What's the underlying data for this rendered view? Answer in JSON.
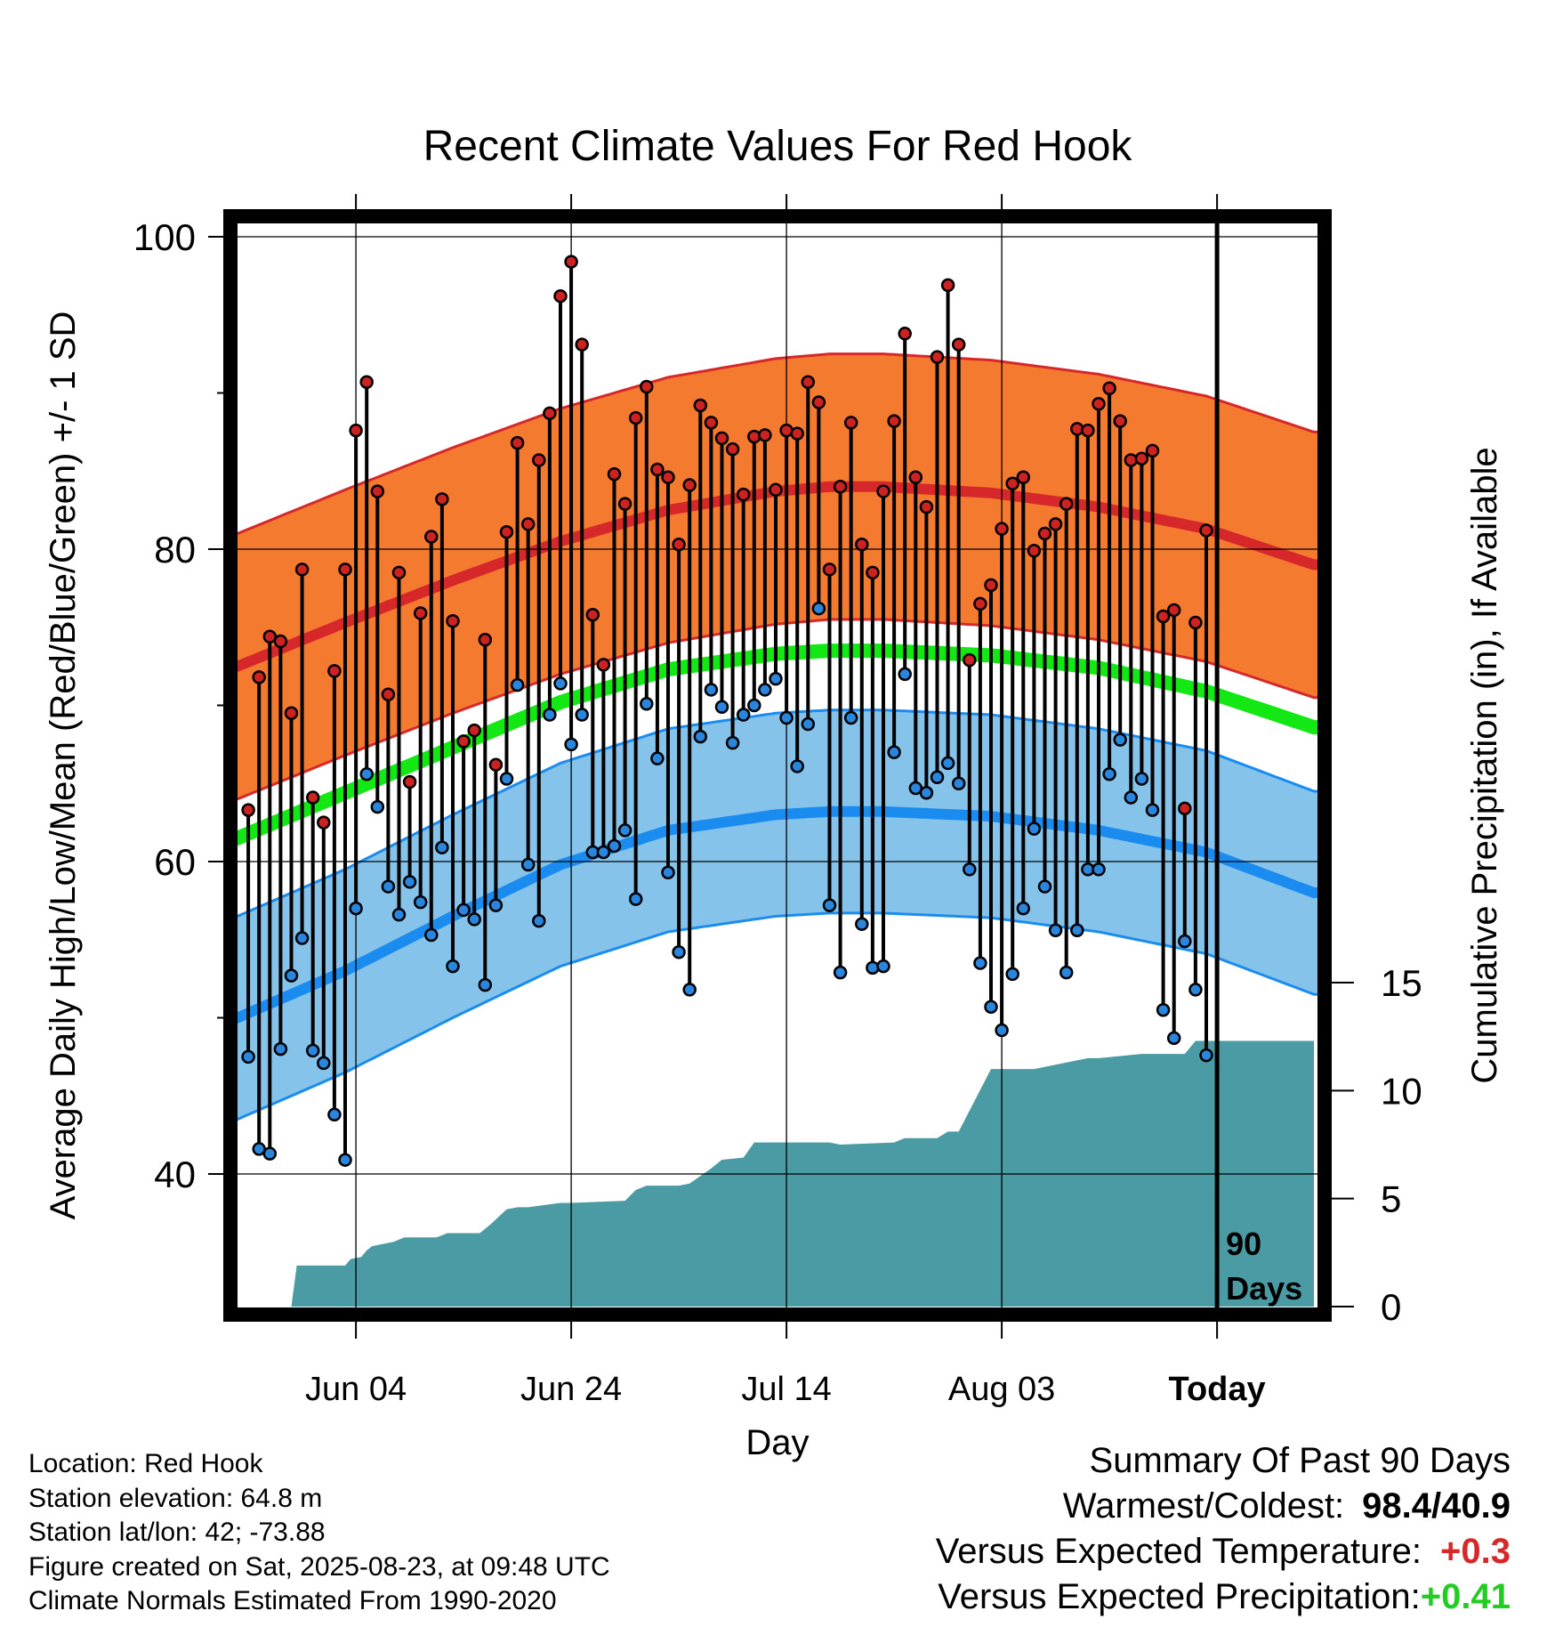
{
  "chart_data": {
    "type": "line",
    "title": "Recent Climate Values For Red Hook",
    "xlabel": "Day",
    "ylabel": "Average Daily High/Low/Mean (Red/Blue/Green) +/- 1 SD",
    "y2label": "Cumulative Precipitation (in), If Available",
    "x_tick_labels": [
      "Jun 04",
      "Jun 24",
      "Jul 14",
      "Aug 03",
      "Today"
    ],
    "x_tick_days": [
      11,
      31,
      51,
      71,
      91
    ],
    "x_range_days": [
      0,
      101
    ],
    "ylim": [
      31,
      104
    ],
    "y_ticks": [
      40,
      60,
      80,
      100
    ],
    "y2lim": [
      0,
      48
    ],
    "y2_ticks": [
      0,
      5,
      10,
      15
    ],
    "grid": true,
    "today_marker": "90 Days",
    "colors": {
      "high_band": "#f47a30",
      "high_line": "#d6282a",
      "low_band": "#86c3ea",
      "low_line": "#1a8cf0",
      "mean_line": "#14e814",
      "precip": "#4a9ba4",
      "high_dot": "#cc2222",
      "low_dot": "#2a86dd"
    },
    "normals": {
      "days": [
        0,
        10,
        20,
        30,
        40,
        50,
        55,
        60,
        70,
        80,
        90,
        100
      ],
      "high": [
        72.5,
        75.3,
        78.0,
        80.5,
        82.5,
        83.7,
        84.0,
        84.0,
        83.6,
        82.7,
        81.3,
        79.0
      ],
      "high_sd": 8.5,
      "low": [
        50.0,
        53.0,
        56.5,
        59.8,
        62.0,
        63.0,
        63.2,
        63.2,
        62.9,
        62.0,
        60.6,
        58.0
      ],
      "low_sd": 6.5,
      "mean": [
        61.5,
        64.4,
        67.3,
        70.2,
        72.3,
        73.3,
        73.5,
        73.5,
        73.2,
        72.4,
        70.9,
        68.6
      ]
    },
    "series": [
      {
        "name": "High",
        "values": [
          63.3,
          71.8,
          74.4,
          74.1,
          69.5,
          78.7,
          64.1,
          62.5,
          72.2,
          78.7,
          87.6,
          90.7,
          83.7,
          70.7,
          78.5,
          65.1,
          75.9,
          80.8,
          83.2,
          75.4,
          67.7,
          68.4,
          74.2,
          66.2,
          81.1,
          86.8,
          81.6,
          85.7,
          88.7,
          96.2,
          98.4,
          93.1,
          75.8,
          72.6,
          84.8,
          82.9,
          88.4,
          90.4,
          85.1,
          84.6,
          80.3,
          84.1,
          89.2,
          88.1,
          87.1,
          86.4,
          83.5,
          87.2,
          87.3,
          83.8,
          87.6,
          87.4,
          90.7,
          89.4,
          78.7,
          84.0,
          88.1,
          80.3,
          78.5,
          83.7,
          88.2,
          93.8,
          84.6,
          82.7,
          92.3,
          96.9,
          93.1,
          72.9,
          76.5,
          77.7,
          81.3,
          84.2,
          84.6,
          79.9,
          81.0,
          81.6,
          82.9,
          87.7,
          87.6,
          89.3,
          90.3,
          88.2,
          85.7,
          85.8,
          86.3,
          75.7,
          76.1,
          63.4,
          75.3,
          81.2
        ]
      },
      {
        "name": "Low",
        "values": [
          47.5,
          41.6,
          41.3,
          48.0,
          52.7,
          55.1,
          47.9,
          47.1,
          43.8,
          40.9,
          57.0,
          65.6,
          63.5,
          58.4,
          56.6,
          58.7,
          57.4,
          55.3,
          60.9,
          53.3,
          56.9,
          56.3,
          52.1,
          57.2,
          65.3,
          71.3,
          59.8,
          56.2,
          69.4,
          71.4,
          67.5,
          69.4,
          60.6,
          60.6,
          61.0,
          62.0,
          57.6,
          70.1,
          66.6,
          59.3,
          54.2,
          51.8,
          68.0,
          71.0,
          69.9,
          67.6,
          69.4,
          70.0,
          71.0,
          71.7,
          69.2,
          66.1,
          68.8,
          76.2,
          57.2,
          52.9,
          69.2,
          56.0,
          53.2,
          53.3,
          67.0,
          72.0,
          64.7,
          64.4,
          65.4,
          66.3,
          65.0,
          59.5,
          53.5,
          50.7,
          49.2,
          52.8,
          57.0,
          62.1,
          58.4,
          55.6,
          52.9,
          55.6,
          59.5,
          59.5,
          65.6,
          67.8,
          64.1,
          65.3,
          63.3,
          50.5,
          48.7,
          54.9,
          51.8,
          47.6
        ]
      },
      {
        "name": "Cumulative Precipitation",
        "x": [
          5.0,
          5.5,
          10.0,
          10.5,
          11.5,
          12.0,
          12.5,
          14.5,
          15.5,
          18.5,
          19.5,
          22.5,
          23.5,
          25.0,
          26.0,
          27.0,
          30.0,
          31.0,
          36.0,
          37.0,
          38.0,
          41.0,
          42.0,
          44.0,
          45.0,
          47.0,
          48.0,
          55.0,
          56.0,
          61.0,
          62.0,
          65.0,
          66.0,
          67.0,
          70.0,
          71.0,
          74.0,
          79.0,
          80.0,
          84.0,
          88.0,
          89.0,
          100.0
        ],
        "values": [
          0.0,
          1.9,
          1.9,
          2.2,
          2.3,
          2.6,
          2.8,
          3.0,
          3.2,
          3.2,
          3.4,
          3.4,
          3.8,
          4.5,
          4.6,
          4.6,
          4.8,
          4.8,
          4.9,
          5.4,
          5.6,
          5.6,
          5.7,
          6.4,
          6.8,
          6.9,
          7.6,
          7.6,
          7.5,
          7.6,
          7.8,
          7.8,
          8.1,
          8.1,
          11.0,
          11.0,
          11.0,
          11.5,
          11.5,
          11.7,
          11.7,
          12.3,
          12.3
        ]
      }
    ]
  },
  "info": {
    "location": "Location: Red Hook",
    "elevation": "Station elevation: 64.8 m",
    "latlon": "Station lat/lon: 42; -73.88",
    "created": "Figure created on Sat, 2025-08-23, at 09:48 UTC",
    "normals": "Climate Normals Estimated From 1990-2020"
  },
  "summary": {
    "title": "Summary Of Past 90 Days",
    "warmest_coldest_label": "Warmest/Coldest:",
    "warmest_coldest_value": "98.4/40.9",
    "temp_label": "Versus Expected Temperature:",
    "temp_value": "+0.3",
    "temp_color": "#d6282a",
    "precip_label": "Versus Expected Precipitation:",
    "precip_value": "+0.41",
    "precip_color": "#22cc22"
  }
}
